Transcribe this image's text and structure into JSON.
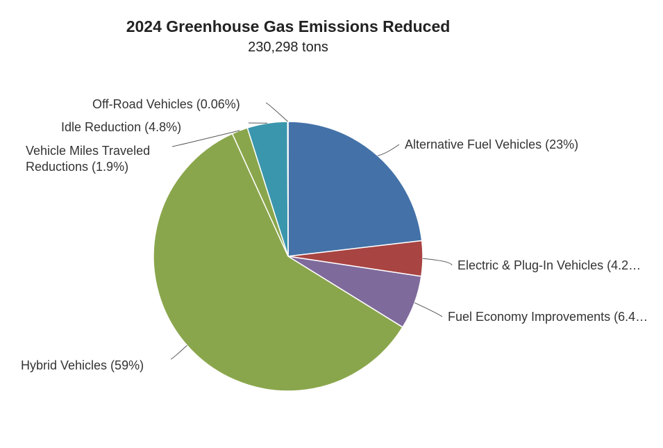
{
  "chart_data": {
    "type": "pie",
    "title": "2024 Greenhouse Gas Emissions Reduced",
    "subtitle": "230,298 tons",
    "legend": "none",
    "slices": [
      {
        "label": "Alternative Fuel Vehicles (23%)",
        "value": 23,
        "color": "#4472a8"
      },
      {
        "label": "Electric & Plug-In Vehicles (4.2…",
        "value": 4.2,
        "color": "#a84442"
      },
      {
        "label": "Fuel Economy Improvements (6.4…",
        "value": 6.4,
        "color": "#7f6a9c"
      },
      {
        "label": "Hybrid Vehicles (59%)",
        "value": 59,
        "color": "#8aa64c"
      },
      {
        "label": "Vehicle Miles Traveled\nReductions (1.9%)",
        "value": 1.9,
        "color": "#8aa64c"
      },
      {
        "label": "Idle Reduction (4.8%)",
        "value": 4.8,
        "color": "#3a96ac"
      },
      {
        "label": "Off-Road Vehicles (0.06%)",
        "value": 0.06,
        "color": "#b8d09a"
      }
    ]
  }
}
